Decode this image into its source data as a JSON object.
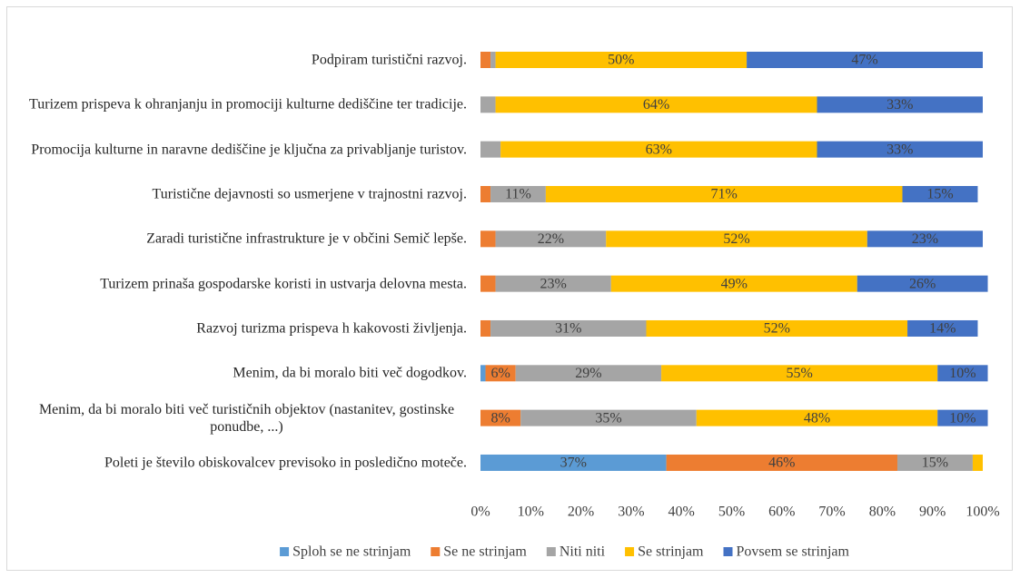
{
  "chart_data": {
    "type": "stacked_bar_horizontal",
    "categories": [
      "Podpiram turistični razvoj.",
      "Turizem prispeva k ohranjanju in promociji kulturne dediščine ter tradicije.",
      "Promocija kulturne in naravne dediščine je ključna za privabljanje turistov.",
      "Turistične dejavnosti so usmerjene v trajnostni razvoj.",
      "Zaradi turistične infrastrukture je v občini Semič lepše.",
      "Turizem prinaša gospodarske koristi in ustvarja delovna mesta.",
      "Razvoj turizma prispeva h kakovosti življenja.",
      "Menim, da bi moralo biti več dogodkov.",
      "Menim, da bi moralo biti več turističnih objektov (nastanitev, gostinske ponudbe, ...)",
      "Poleti je število obiskovalcev previsoko in posledično moteče."
    ],
    "series": [
      {
        "name": "Sploh se ne strinjam",
        "color": "#5b9bd5",
        "values": [
          0,
          0,
          0,
          0,
          0,
          0,
          0,
          1,
          0,
          37
        ],
        "value_labels": [
          null,
          null,
          null,
          null,
          null,
          null,
          null,
          null,
          null,
          "37%"
        ]
      },
      {
        "name": "Se ne strinjam",
        "color": "#ed7d31",
        "values": [
          2,
          0,
          0,
          2,
          3,
          3,
          2,
          6,
          8,
          46
        ],
        "value_labels": [
          null,
          null,
          null,
          null,
          null,
          null,
          null,
          "6%",
          "8%",
          "46%"
        ]
      },
      {
        "name": "Niti niti",
        "color": "#a5a5a5",
        "values": [
          1,
          3,
          4,
          11,
          22,
          23,
          31,
          29,
          35,
          15
        ],
        "value_labels": [
          null,
          null,
          null,
          "11%",
          "22%",
          "23%",
          "31%",
          "29%",
          "35%",
          "15%"
        ]
      },
      {
        "name": "Se strinjam",
        "color": "#ffc000",
        "values": [
          50,
          64,
          63,
          71,
          52,
          49,
          52,
          55,
          48,
          2
        ],
        "value_labels": [
          "50%",
          "64%",
          "63%",
          "71%",
          "52%",
          "49%",
          "52%",
          "55%",
          "48%",
          null
        ]
      },
      {
        "name": "Povsem se strinjam",
        "color": "#4472c4",
        "values": [
          47,
          33,
          33,
          15,
          23,
          26,
          14,
          10,
          10,
          0
        ],
        "value_labels": [
          "47%",
          "33%",
          "33%",
          "15%",
          "23%",
          "26%",
          "14%",
          "10%",
          "10%",
          null
        ]
      }
    ],
    "xlim": [
      0,
      100
    ],
    "xticks": [
      {
        "value": 0,
        "label": "0%"
      },
      {
        "value": 10,
        "label": "10%"
      },
      {
        "value": 20,
        "label": "20%"
      },
      {
        "value": 30,
        "label": "30%"
      },
      {
        "value": 40,
        "label": "40%"
      },
      {
        "value": 50,
        "label": "50%"
      },
      {
        "value": 60,
        "label": "60%"
      },
      {
        "value": 70,
        "label": "70%"
      },
      {
        "value": 80,
        "label": "80%"
      },
      {
        "value": 90,
        "label": "90%"
      },
      {
        "value": 100,
        "label": "100%"
      }
    ],
    "legend": "bottom"
  }
}
